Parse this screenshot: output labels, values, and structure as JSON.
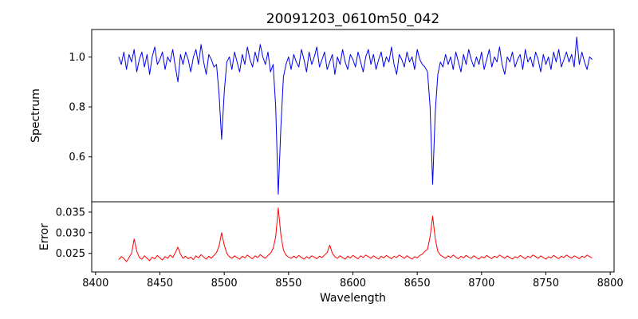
{
  "figure": {
    "background": "#ffffff"
  },
  "chart_data": {
    "type": "line",
    "title": "20091203_0610m50_042",
    "xlabel": "Wavelength",
    "x_start": 8418,
    "x_step": 2,
    "xlim": [
      8397,
      8803
    ],
    "x_ticks": [
      8400,
      8450,
      8500,
      8550,
      8600,
      8650,
      8700,
      8750,
      8800
    ],
    "x_tick_labels": [
      "8400",
      "8450",
      "8500",
      "8550",
      "8600",
      "8650",
      "8700",
      "8750",
      "8800"
    ],
    "grid": false,
    "legend": "none",
    "panels": [
      {
        "name": "spectrum",
        "ylabel": "Spectrum",
        "color": "#0000ee",
        "ylim": [
          0.42,
          1.11
        ],
        "y_ticks": [
          0.6,
          0.8,
          1.0
        ],
        "y_tick_labels": [
          "0.6",
          "0.8",
          "1.0"
        ],
        "absorption_line_centers": [
          8498,
          8542,
          8662
        ],
        "values": [
          1.0,
          0.97,
          1.02,
          0.95,
          1.01,
          0.98,
          1.03,
          0.94,
          0.99,
          1.02,
          0.96,
          1.01,
          0.93,
          1.0,
          1.04,
          0.97,
          0.99,
          1.02,
          0.95,
          1.0,
          0.98,
          1.03,
          0.96,
          0.9,
          1.01,
          0.97,
          1.02,
          0.99,
          0.94,
          1.0,
          1.03,
          0.97,
          1.05,
          0.98,
          0.93,
          1.01,
          0.99,
          0.96,
          0.97,
          0.85,
          0.67,
          0.86,
          0.98,
          1.0,
          0.95,
          1.02,
          0.98,
          0.94,
          1.01,
          0.97,
          1.04,
          0.99,
          0.96,
          1.02,
          0.98,
          1.05,
          1.0,
          0.97,
          1.02,
          0.94,
          0.97,
          0.8,
          0.45,
          0.72,
          0.92,
          0.97,
          1.0,
          0.95,
          1.01,
          0.98,
          0.96,
          1.03,
          0.99,
          0.94,
          1.02,
          0.97,
          1.0,
          1.04,
          0.96,
          0.99,
          1.02,
          0.95,
          0.98,
          1.01,
          0.93,
          1.0,
          0.97,
          1.03,
          0.98,
          0.95,
          1.01,
          0.99,
          0.96,
          1.02,
          0.98,
          0.94,
          1.0,
          1.03,
          0.97,
          1.01,
          0.95,
          0.99,
          1.02,
          0.96,
          1.0,
          0.98,
          1.04,
          0.97,
          0.93,
          1.01,
          0.99,
          0.96,
          1.02,
          0.98,
          1.0,
          0.95,
          1.03,
          0.99,
          0.97,
          0.96,
          0.94,
          0.8,
          0.49,
          0.78,
          0.93,
          0.98,
          0.96,
          1.01,
          0.97,
          1.0,
          0.95,
          1.02,
          0.98,
          0.94,
          1.01,
          0.97,
          1.03,
          0.99,
          0.96,
          1.0,
          0.97,
          1.02,
          0.95,
          0.99,
          1.03,
          0.96,
          1.0,
          0.98,
          1.04,
          0.97,
          0.93,
          1.0,
          0.98,
          1.02,
          0.96,
          0.99,
          1.01,
          0.95,
          1.03,
          0.98,
          1.0,
          0.96,
          1.02,
          0.99,
          0.94,
          1.01,
          0.97,
          1.0,
          0.95,
          1.02,
          0.98,
          1.03,
          0.96,
          0.99,
          1.02,
          0.98,
          1.01,
          0.96,
          1.08,
          0.97,
          1.02,
          0.98,
          0.95,
          1.0,
          0.99
        ]
      },
      {
        "name": "error",
        "ylabel": "Error",
        "color": "#ff0000",
        "ylim": [
          0.0205,
          0.0375
        ],
        "y_ticks": [
          0.025,
          0.03,
          0.035
        ],
        "y_tick_labels": [
          "0.025",
          "0.030",
          "0.035"
        ],
        "values": [
          0.0235,
          0.0242,
          0.0238,
          0.023,
          0.024,
          0.025,
          0.0285,
          0.0255,
          0.024,
          0.0236,
          0.0244,
          0.0238,
          0.0232,
          0.0241,
          0.0237,
          0.0245,
          0.0239,
          0.0234,
          0.0242,
          0.0238,
          0.0246,
          0.024,
          0.0252,
          0.0265,
          0.0248,
          0.0238,
          0.0243,
          0.0237,
          0.0241,
          0.0235,
          0.0244,
          0.0239,
          0.0247,
          0.0241,
          0.0236,
          0.0243,
          0.0238,
          0.0245,
          0.0252,
          0.0268,
          0.03,
          0.027,
          0.025,
          0.0242,
          0.0238,
          0.0244,
          0.024,
          0.0236,
          0.0243,
          0.0239,
          0.0246,
          0.0241,
          0.0237,
          0.0244,
          0.024,
          0.0247,
          0.0242,
          0.0238,
          0.0245,
          0.025,
          0.0262,
          0.029,
          0.036,
          0.0295,
          0.0258,
          0.0246,
          0.0241,
          0.0238,
          0.0243,
          0.0239,
          0.0245,
          0.024,
          0.0236,
          0.0242,
          0.0238,
          0.0244,
          0.0241,
          0.0237,
          0.0243,
          0.024,
          0.0246,
          0.0252,
          0.027,
          0.025,
          0.0242,
          0.0238,
          0.0244,
          0.024,
          0.0236,
          0.0243,
          0.0239,
          0.0245,
          0.0241,
          0.0237,
          0.0244,
          0.024,
          0.0246,
          0.0242,
          0.0238,
          0.0244,
          0.024,
          0.0236,
          0.0243,
          0.0239,
          0.0245,
          0.0241,
          0.0237,
          0.0243,
          0.024,
          0.0246,
          0.0242,
          0.0238,
          0.0244,
          0.024,
          0.0236,
          0.0242,
          0.0239,
          0.0245,
          0.0248,
          0.0255,
          0.026,
          0.029,
          0.034,
          0.0285,
          0.0255,
          0.0246,
          0.0242,
          0.0238,
          0.0244,
          0.024,
          0.0246,
          0.0241,
          0.0237,
          0.0243,
          0.0239,
          0.0245,
          0.0241,
          0.0238,
          0.0244,
          0.024,
          0.0236,
          0.0242,
          0.0239,
          0.0245,
          0.0241,
          0.0237,
          0.0243,
          0.024,
          0.0246,
          0.0242,
          0.0238,
          0.0244,
          0.024,
          0.0236,
          0.0242,
          0.0239,
          0.0245,
          0.0241,
          0.0237,
          0.0243,
          0.024,
          0.0246,
          0.0242,
          0.0238,
          0.0244,
          0.024,
          0.0236,
          0.0242,
          0.0239,
          0.0245,
          0.0241,
          0.0237,
          0.0243,
          0.024,
          0.0246,
          0.0242,
          0.0238,
          0.0244,
          0.0241,
          0.0237,
          0.0243,
          0.024,
          0.0246,
          0.0242,
          0.0239
        ]
      }
    ]
  }
}
